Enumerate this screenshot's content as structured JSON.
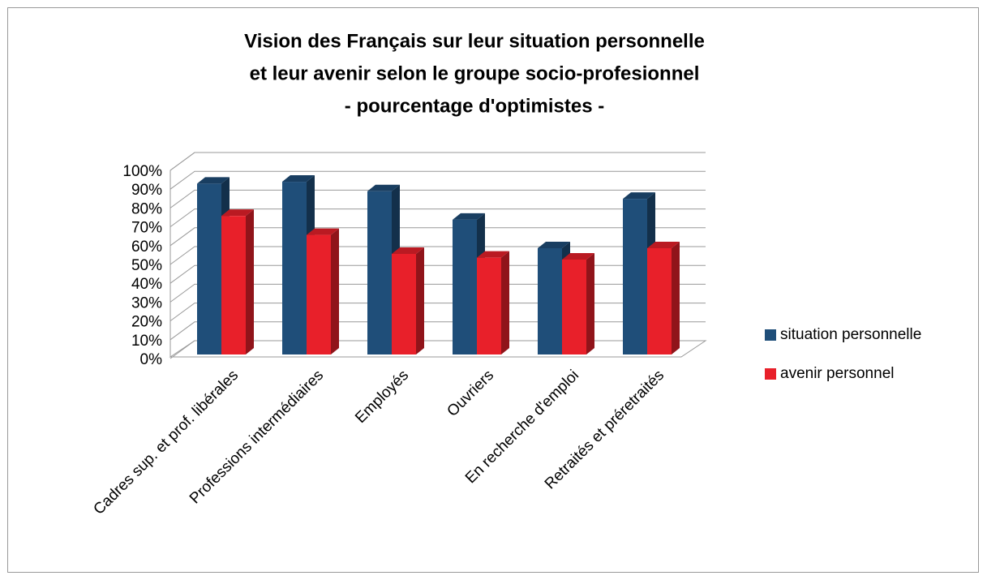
{
  "chart_data": {
    "type": "bar3d",
    "title": [
      "Vision des Français sur leur situation personnelle",
      "et leur avenir selon le groupe socio-profesionnel",
      "- pourcentage  d'optimistes  -"
    ],
    "categories": [
      "Cadres sup. et prof. libérales",
      "Professions intermédiaires",
      "Employés",
      "Ouvriers",
      "En recherche d'emploi",
      "Retraités et préretraités"
    ],
    "series": [
      {
        "name": "situation personnelle",
        "color": "#1f4e79",
        "values": [
          90,
          91,
          86,
          71,
          56,
          82
        ]
      },
      {
        "name": "avenir personnel",
        "color": "#e8202a",
        "values": [
          73,
          63,
          53,
          51,
          50,
          56
        ]
      }
    ],
    "ylim": [
      0,
      100
    ],
    "yticks": [
      {
        "value": 0,
        "label": "0%"
      },
      {
        "value": 10,
        "label": "10%"
      },
      {
        "value": 20,
        "label": "20%"
      },
      {
        "value": 30,
        "label": "30%"
      },
      {
        "value": 40,
        "label": "40%"
      },
      {
        "value": 50,
        "label": "50%"
      },
      {
        "value": 60,
        "label": "60%"
      },
      {
        "value": 70,
        "label": "70%"
      },
      {
        "value": 80,
        "label": "80%"
      },
      {
        "value": 90,
        "label": "90%"
      },
      {
        "value": 100,
        "label": "100%"
      }
    ],
    "grid": true,
    "legend": "right"
  }
}
